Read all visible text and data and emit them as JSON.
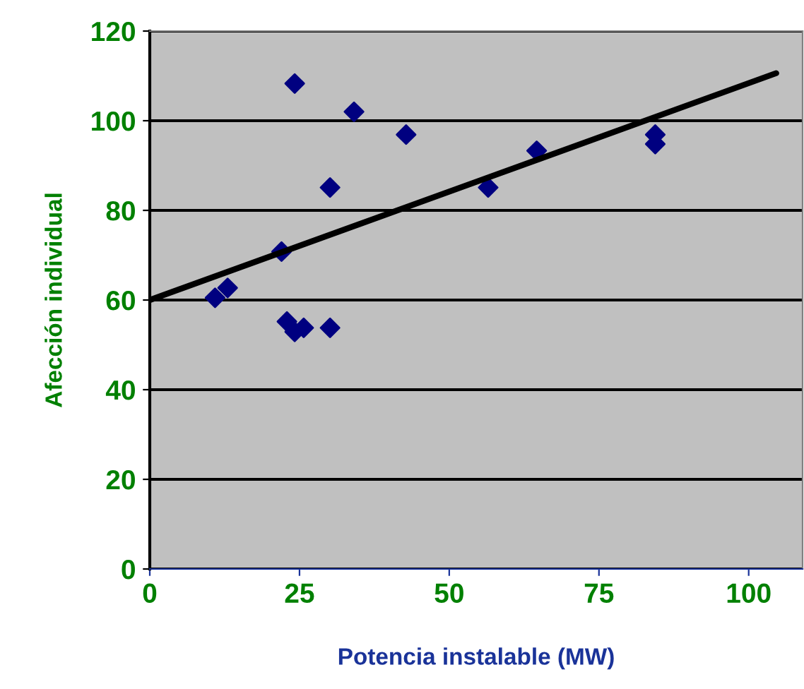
{
  "chart_data": {
    "type": "scatter",
    "xlabel": "Potencia instalable (MW)",
    "ylabel": "Afección individual",
    "series": [
      {
        "color": "#000080",
        "marker": "diamond",
        "x": [
          10.9,
          13.0,
          22.0,
          24.2,
          34.1,
          42.8,
          30.1,
          56.5,
          64.6,
          84.4,
          84.4,
          22.9,
          24.2,
          25.7,
          30.1
        ],
        "values": [
          60.5,
          62.7,
          70.8,
          108.3,
          102.0,
          96.9,
          85.1,
          85.1,
          93.3,
          96.9,
          94.8,
          55.2,
          52.9,
          53.8,
          53.8
        ]
      },
      {
        "type": "line",
        "color": "#000000",
        "marker": "none",
        "line_style": "solid",
        "x": [
          0,
          104.6
        ],
        "values": [
          60,
          110.6
        ]
      }
    ],
    "xlim": [
      0,
      109
    ],
    "ylim": [
      0,
      120
    ],
    "xticks": [
      0,
      25,
      50,
      75,
      100
    ],
    "yticks": [
      0,
      20,
      40,
      60,
      80,
      100,
      120
    ],
    "grid": "y",
    "legend": false
  }
}
